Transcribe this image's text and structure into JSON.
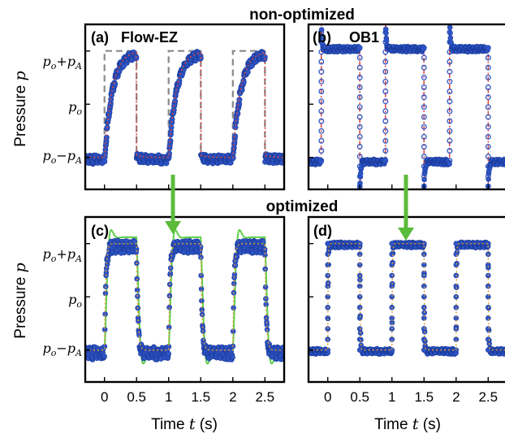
{
  "titles": {
    "top": "non-optimized",
    "bottom": "optimized"
  },
  "axes": {
    "ylabel_text": "Pressure ",
    "ylabel_sym": "p",
    "xlabel_text": "Time ",
    "xlabel_sym": "t",
    "xlabel_unit": " (s)",
    "y_ticks": [
      {
        "value": 1,
        "label": "po+pA"
      },
      {
        "value": 0,
        "label": "po"
      },
      {
        "value": -1,
        "label": "po−pA"
      }
    ],
    "x_ticks": [
      "0",
      "0.5",
      "1",
      "1.5",
      "2",
      "2.5"
    ]
  },
  "colors": {
    "data": "#2f55c7",
    "fit": "#d9443a",
    "reference": "#888888",
    "predicted": "#5fcf4a",
    "arrow": "#5bbb3a"
  },
  "chart_data": [
    {
      "type": "line",
      "panel": "(a)",
      "label": "Flow-EZ",
      "group": "non-optimized",
      "xlim": [
        -0.3,
        2.8
      ],
      "ylim": [
        -1.6,
        1.5
      ],
      "period": 1.0,
      "square_high_start": 0.0,
      "square_high_duration": 0.5,
      "levels": [
        1,
        -1
      ],
      "response": "first-order rise/decay",
      "time_constant_s": 0.12,
      "series": [
        {
          "role": "reference",
          "style": "gray dashed",
          "x": [
            -0.3,
            0,
            0,
            0.5,
            0.5,
            1,
            1,
            1.5,
            1.5,
            2,
            2,
            2.5,
            2.5,
            2.8
          ],
          "y": [
            -1,
            -1,
            1,
            1,
            -1,
            -1,
            1,
            1,
            -1,
            -1,
            1,
            1,
            -1,
            -1
          ]
        },
        {
          "role": "measured",
          "style": "blue markers"
        },
        {
          "role": "fit",
          "style": "red dotted"
        }
      ]
    },
    {
      "type": "line",
      "panel": "(b)",
      "label": "OB1",
      "group": "non-optimized",
      "xlim": [
        -0.3,
        2.8
      ],
      "ylim": [
        -1.6,
        1.5
      ],
      "period": 1.0,
      "square_high_start": -0.1,
      "square_high_duration": 0.6,
      "levels": [
        1,
        -1
      ],
      "response": "overshoot and undershoot at transitions",
      "series": [
        {
          "role": "measured",
          "style": "blue markers"
        },
        {
          "role": "fit",
          "style": "red dash-dot"
        }
      ]
    },
    {
      "type": "line",
      "panel": "(c)",
      "group": "optimized",
      "xlim": [
        -0.3,
        2.8
      ],
      "ylim": [
        -1.6,
        1.5
      ],
      "period": 1.0,
      "square_high_start": 0.0,
      "square_high_duration": 0.5,
      "levels": [
        1,
        -1
      ],
      "response": "near-square with small overshoot",
      "series": [
        {
          "role": "predicted",
          "style": "green solid"
        },
        {
          "role": "measured",
          "style": "blue markers"
        },
        {
          "role": "fit",
          "style": "orange dotted"
        }
      ]
    },
    {
      "type": "line",
      "panel": "(d)",
      "group": "optimized",
      "xlim": [
        -0.3,
        2.8
      ],
      "ylim": [
        -1.6,
        1.5
      ],
      "period": 1.0,
      "square_high_start": 0.0,
      "square_high_duration": 0.5,
      "levels": [
        1,
        -1
      ],
      "response": "square",
      "series": [
        {
          "role": "measured",
          "style": "blue markers"
        },
        {
          "role": "fit",
          "style": "orange dotted"
        }
      ]
    }
  ]
}
